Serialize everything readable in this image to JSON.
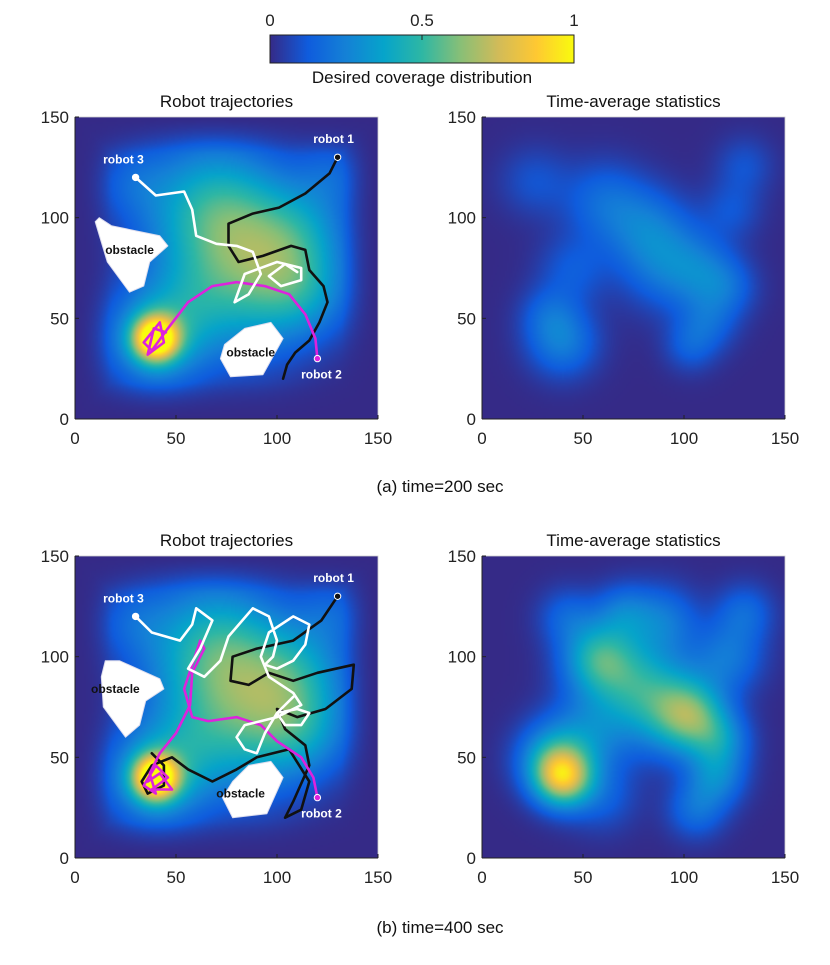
{
  "colorbar": {
    "label": "Desired coverage distribution",
    "ticks": [
      {
        "value": 0,
        "label": "0"
      },
      {
        "value": 0.5,
        "label": "0.5"
      },
      {
        "value": 1,
        "label": "1"
      }
    ],
    "colormap": [
      "#352a87",
      "#0f5cdd",
      "#1481d6",
      "#06a4ca",
      "#2eb7a4",
      "#87bf77",
      "#d1bb59",
      "#fec832",
      "#f9fb0e"
    ]
  },
  "colors": {
    "robot1": "#111111",
    "robot2": "#dd22dd",
    "robot3": "#ffffff",
    "obstacle": "#ffffff",
    "background": "#33349a"
  },
  "chart_data": [
    {
      "type": "heatmap",
      "panel": "a-left",
      "title": "Robot trajectories",
      "caption": "(a) time=200 sec",
      "xlim": [
        0,
        150
      ],
      "ylim": [
        0,
        150
      ],
      "xticks": [
        0,
        50,
        100,
        150
      ],
      "yticks": [
        0,
        50,
        100,
        150
      ],
      "field": "desired",
      "obstacles": [
        {
          "label": "obstacle",
          "label_at": [
            27,
            82
          ],
          "polygon": [
            [
              12,
              100
            ],
            [
              18,
              96
            ],
            [
              42,
              91
            ],
            [
              46,
              86
            ],
            [
              37,
              78
            ],
            [
              34,
              66
            ],
            [
              27,
              63
            ],
            [
              16,
              78
            ],
            [
              10,
              98
            ]
          ]
        },
        {
          "label": "obstacle",
          "label_at": [
            87,
            31
          ],
          "polygon": [
            [
              72,
              30
            ],
            [
              77,
              21
            ],
            [
              93,
              22
            ],
            [
              103,
              40
            ],
            [
              97,
              48
            ],
            [
              84,
              45
            ],
            [
              74,
              37
            ]
          ]
        }
      ],
      "robots": [
        {
          "label": "robot 1",
          "color": "#111111",
          "start": [
            130,
            130
          ],
          "label_at": [
            128,
            137
          ],
          "path": [
            [
              130,
              130
            ],
            [
              126,
              122
            ],
            [
              114,
              112
            ],
            [
              101,
              105
            ],
            [
              88,
              102
            ],
            [
              76,
              97
            ],
            [
              76,
              86
            ],
            [
              81,
              78
            ],
            [
              93,
              81
            ],
            [
              107,
              86
            ],
            [
              114,
              84
            ],
            [
              116,
              74
            ],
            [
              123,
              66
            ],
            [
              125,
              58
            ],
            [
              121,
              48
            ],
            [
              116,
              39
            ],
            [
              109,
              33
            ],
            [
              105,
              27
            ],
            [
              103,
              20
            ]
          ]
        },
        {
          "label": "robot 2",
          "color": "#dd22dd",
          "start": [
            120,
            30
          ],
          "label_at": [
            122,
            20
          ],
          "path": [
            [
              120,
              30
            ],
            [
              119,
              40
            ],
            [
              114,
              52
            ],
            [
              106,
              62
            ],
            [
              94,
              66
            ],
            [
              80,
              68
            ],
            [
              68,
              66
            ],
            [
              56,
              58
            ],
            [
              46,
              45
            ],
            [
              38,
              34
            ],
            [
              34,
              38
            ],
            [
              42,
              48
            ],
            [
              44,
              38
            ],
            [
              36,
              32
            ],
            [
              39,
              45
            ],
            [
              45,
              43
            ]
          ]
        },
        {
          "label": "robot 3",
          "color": "#ffffff",
          "start": [
            30,
            120
          ],
          "label_at": [
            24,
            127
          ],
          "path": [
            [
              30,
              120
            ],
            [
              40,
              111
            ],
            [
              54,
              113
            ],
            [
              58,
              104
            ],
            [
              60,
              91
            ],
            [
              70,
              87
            ],
            [
              80,
              86
            ],
            [
              88,
              83
            ],
            [
              92,
              72
            ],
            [
              86,
              62
            ],
            [
              79,
              58
            ],
            [
              84,
              72
            ],
            [
              100,
              78
            ],
            [
              112,
              75
            ],
            [
              112,
              69
            ],
            [
              102,
              66
            ],
            [
              96,
              71
            ],
            [
              104,
              77
            ],
            [
              110,
              73
            ]
          ]
        }
      ]
    },
    {
      "type": "heatmap",
      "panel": "a-right",
      "title": "Time-average statistics",
      "xlim": [
        0,
        150
      ],
      "ylim": [
        0,
        150
      ],
      "xticks": [
        0,
        50,
        100,
        150
      ],
      "yticks": [
        0,
        50,
        100,
        150
      ],
      "field": "time-average",
      "blobs": [
        [
          40,
          38,
          12,
          0.22
        ],
        [
          33,
          52,
          10,
          0.12
        ],
        [
          45,
          74,
          12,
          0.12
        ],
        [
          26,
          118,
          12,
          0.1
        ],
        [
          60,
          108,
          14,
          0.16
        ],
        [
          80,
          96,
          14,
          0.16
        ],
        [
          92,
          78,
          16,
          0.22
        ],
        [
          110,
          72,
          12,
          0.14
        ],
        [
          122,
          65,
          10,
          0.12
        ],
        [
          112,
          48,
          10,
          0.14
        ],
        [
          103,
          36,
          9,
          0.12
        ],
        [
          124,
          104,
          10,
          0.1
        ],
        [
          130,
          126,
          10,
          0.1
        ]
      ]
    },
    {
      "type": "heatmap",
      "panel": "b-left",
      "title": "Robot trajectories",
      "caption": "(b) time=400 sec",
      "xlim": [
        0,
        150
      ],
      "ylim": [
        0,
        150
      ],
      "xticks": [
        0,
        50,
        100,
        150
      ],
      "yticks": [
        0,
        50,
        100,
        150
      ],
      "field": "desired",
      "obstacles": [
        {
          "label": "obstacle",
          "label_at": [
            20,
            82
          ],
          "polygon": [
            [
              15,
              98
            ],
            [
              22,
              98
            ],
            [
              42,
              89
            ],
            [
              44,
              84
            ],
            [
              35,
              78
            ],
            [
              32,
              66
            ],
            [
              25,
              60
            ],
            [
              14,
              75
            ],
            [
              13,
              90
            ]
          ]
        },
        {
          "label": "obstacle",
          "label_at": [
            82,
            30
          ],
          "polygon": [
            [
              78,
              38
            ],
            [
              73,
              30
            ],
            [
              78,
              20
            ],
            [
              95,
              22
            ],
            [
              103,
              40
            ],
            [
              97,
              48
            ],
            [
              86,
              46
            ]
          ]
        }
      ],
      "robots": [
        {
          "label": "robot 1",
          "color": "#111111",
          "start": [
            130,
            130
          ],
          "label_at": [
            128,
            137
          ],
          "path": [
            [
              130,
              130
            ],
            [
              122,
              118
            ],
            [
              108,
              108
            ],
            [
              90,
              104
            ],
            [
              78,
              100
            ],
            [
              77,
              88
            ],
            [
              86,
              86
            ],
            [
              96,
              92
            ],
            [
              108,
              88
            ],
            [
              120,
              92
            ],
            [
              138,
              96
            ],
            [
              137,
              84
            ],
            [
              124,
              74
            ],
            [
              110,
              70
            ],
            [
              100,
              74
            ],
            [
              104,
              64
            ],
            [
              114,
              56
            ],
            [
              116,
              46
            ],
            [
              108,
              28
            ],
            [
              104,
              20
            ],
            [
              112,
              24
            ],
            [
              116,
              38
            ],
            [
              106,
              54
            ],
            [
              90,
              50
            ],
            [
              80,
              44
            ],
            [
              68,
              38
            ],
            [
              56,
              44
            ],
            [
              48,
              50
            ],
            [
              38,
              46
            ],
            [
              33,
              38
            ],
            [
              36,
              32
            ],
            [
              44,
              36
            ],
            [
              44,
              46
            ],
            [
              38,
              52
            ]
          ]
        },
        {
          "label": "robot 2",
          "color": "#dd22dd",
          "start": [
            120,
            30
          ],
          "label_at": [
            122,
            20
          ],
          "path": [
            [
              120,
              30
            ],
            [
              118,
              40
            ],
            [
              112,
              50
            ],
            [
              100,
              58
            ],
            [
              92,
              66
            ],
            [
              80,
              70
            ],
            [
              66,
              68
            ],
            [
              58,
              70
            ],
            [
              54,
              84
            ],
            [
              62,
              108
            ],
            [
              64,
              104
            ],
            [
              58,
              92
            ],
            [
              57,
              76
            ],
            [
              50,
              62
            ],
            [
              42,
              52
            ],
            [
              37,
              42
            ],
            [
              40,
              32
            ],
            [
              34,
              36
            ],
            [
              40,
              46
            ],
            [
              46,
              40
            ],
            [
              38,
              34
            ],
            [
              48,
              34
            ],
            [
              42,
              42
            ],
            [
              36,
              38
            ]
          ]
        },
        {
          "label": "robot 3",
          "color": "#ffffff",
          "start": [
            30,
            120
          ],
          "label_at": [
            24,
            127
          ],
          "path": [
            [
              30,
              120
            ],
            [
              38,
              112
            ],
            [
              52,
              108
            ],
            [
              58,
              116
            ],
            [
              60,
              124
            ],
            [
              68,
              118
            ],
            [
              62,
              104
            ],
            [
              56,
              94
            ],
            [
              64,
              90
            ],
            [
              72,
              98
            ],
            [
              76,
              110
            ],
            [
              88,
              124
            ],
            [
              96,
              120
            ],
            [
              100,
              108
            ],
            [
              98,
              100
            ],
            [
              94,
              96
            ],
            [
              100,
              94
            ],
            [
              108,
              98
            ],
            [
              114,
              106
            ],
            [
              116,
              116
            ],
            [
              108,
              120
            ],
            [
              96,
              112
            ],
            [
              92,
              100
            ],
            [
              96,
              90
            ],
            [
              108,
              82
            ],
            [
              112,
              76
            ],
            [
              100,
              70
            ],
            [
              92,
              68
            ],
            [
              84,
              66
            ],
            [
              80,
              60
            ],
            [
              84,
              54
            ],
            [
              90,
              52
            ],
            [
              94,
              62
            ],
            [
              100,
              72
            ],
            [
              110,
              74
            ],
            [
              116,
              72
            ],
            [
              112,
              66
            ],
            [
              104,
              66
            ],
            [
              100,
              72
            ],
            [
              108,
              80
            ]
          ]
        }
      ]
    },
    {
      "type": "heatmap",
      "panel": "b-right",
      "title": "Time-average statistics",
      "xlim": [
        0,
        150
      ],
      "ylim": [
        0,
        150
      ],
      "xticks": [
        0,
        50,
        100,
        150
      ],
      "yticks": [
        0,
        50,
        100,
        150
      ],
      "field": "time-average",
      "blobs": [
        [
          40,
          40,
          10,
          0.7
        ],
        [
          34,
          50,
          12,
          0.28
        ],
        [
          52,
          60,
          14,
          0.22
        ],
        [
          57,
          100,
          12,
          0.34
        ],
        [
          70,
          90,
          16,
          0.3
        ],
        [
          90,
          76,
          16,
          0.34
        ],
        [
          104,
          70,
          12,
          0.42
        ],
        [
          118,
          58,
          10,
          0.24
        ],
        [
          116,
          40,
          10,
          0.24
        ],
        [
          106,
          24,
          10,
          0.18
        ],
        [
          122,
          100,
          12,
          0.2
        ],
        [
          130,
          122,
          10,
          0.16
        ],
        [
          90,
          118,
          12,
          0.2
        ],
        [
          70,
          122,
          10,
          0.18
        ],
        [
          42,
          120,
          10,
          0.14
        ],
        [
          60,
          30,
          12,
          0.12
        ]
      ]
    }
  ]
}
